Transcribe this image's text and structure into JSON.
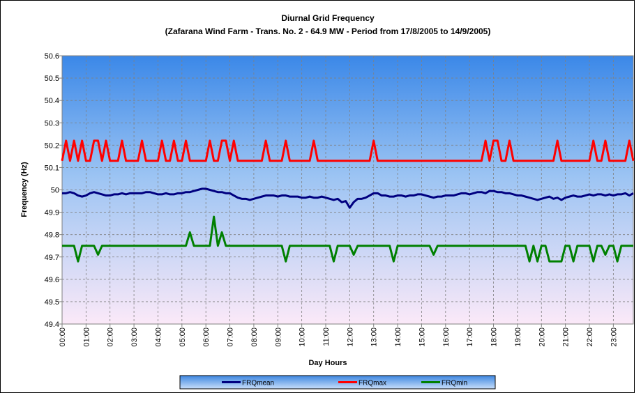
{
  "chart_data": {
    "type": "line",
    "title": "Diurnal Grid Frequency",
    "subtitle": "(Zafarana Wind Farm - Trans. No. 2 - 64.9 MW - Period from 17/8/2005 to 14/9/2005)",
    "x_label": "Day Hours",
    "y_label": "Frequency (Hz)",
    "x": [
      0,
      10,
      20,
      30,
      40,
      50,
      60,
      70,
      80,
      90,
      100,
      110,
      120,
      130,
      140,
      150,
      160,
      170,
      180,
      190,
      200,
      210,
      220,
      230,
      240,
      250,
      260,
      270,
      280,
      290,
      300,
      310,
      320,
      330,
      340,
      350,
      360,
      370,
      380,
      390,
      400,
      410,
      420,
      430,
      440,
      450,
      460,
      470,
      480,
      490,
      500,
      510,
      520,
      530,
      540,
      550,
      560,
      570,
      580,
      590,
      600,
      610,
      620,
      630,
      640,
      650,
      660,
      670,
      680,
      690,
      700,
      710,
      720,
      730,
      740,
      750,
      760,
      770,
      780,
      790,
      800,
      810,
      820,
      830,
      840,
      850,
      860,
      870,
      880,
      890,
      900,
      910,
      920,
      930,
      940,
      950,
      960,
      970,
      980,
      990,
      1000,
      1010,
      1020,
      1030,
      1040,
      1050,
      1060,
      1070,
      1080,
      1090,
      1100,
      1110,
      1120,
      1130,
      1140,
      1150,
      1160,
      1170,
      1180,
      1190,
      1200,
      1210,
      1220,
      1230,
      1240,
      1250,
      1260,
      1270,
      1280,
      1290,
      1300,
      1310,
      1320,
      1330,
      1340,
      1350,
      1360,
      1370,
      1380,
      1390,
      1400,
      1410,
      1420,
      1430
    ],
    "xlim": [
      0,
      1430
    ],
    "xticks": [
      {
        "value": 0,
        "label": "00:00"
      },
      {
        "value": 60,
        "label": "01:00"
      },
      {
        "value": 120,
        "label": "02:00"
      },
      {
        "value": 180,
        "label": "03:00"
      },
      {
        "value": 240,
        "label": "04:00"
      },
      {
        "value": 300,
        "label": "05:00"
      },
      {
        "value": 360,
        "label": "06:00"
      },
      {
        "value": 420,
        "label": "07:00"
      },
      {
        "value": 480,
        "label": "08:00"
      },
      {
        "value": 540,
        "label": "09:00"
      },
      {
        "value": 600,
        "label": "10:00"
      },
      {
        "value": 660,
        "label": "11:00"
      },
      {
        "value": 720,
        "label": "12:00"
      },
      {
        "value": 780,
        "label": "13:00"
      },
      {
        "value": 840,
        "label": "14:00"
      },
      {
        "value": 900,
        "label": "15:00"
      },
      {
        "value": 960,
        "label": "16:00"
      },
      {
        "value": 1020,
        "label": "17:00"
      },
      {
        "value": 1080,
        "label": "18:00"
      },
      {
        "value": 1140,
        "label": "19:00"
      },
      {
        "value": 1200,
        "label": "20:00"
      },
      {
        "value": 1260,
        "label": "21:00"
      },
      {
        "value": 1320,
        "label": "22:00"
      },
      {
        "value": 1380,
        "label": "23:00"
      }
    ],
    "ylim": [
      49.4,
      50.6
    ],
    "yticks": [
      49.4,
      49.5,
      49.6,
      49.7,
      49.8,
      49.9,
      50,
      50.1,
      50.2,
      50.3,
      50.4,
      50.5,
      50.6
    ],
    "grid": true,
    "legend": "bottom",
    "series": [
      {
        "name": "FRQmean",
        "color": "#000080",
        "values": [
          49.985,
          49.985,
          49.99,
          49.985,
          49.975,
          49.97,
          49.975,
          49.985,
          49.99,
          49.985,
          49.98,
          49.975,
          49.975,
          49.98,
          49.98,
          49.985,
          49.98,
          49.985,
          49.985,
          49.985,
          49.985,
          49.99,
          49.99,
          49.985,
          49.98,
          49.98,
          49.985,
          49.98,
          49.98,
          49.985,
          49.985,
          49.99,
          49.99,
          49.995,
          50.0,
          50.005,
          50.005,
          50.0,
          49.995,
          49.99,
          49.99,
          49.985,
          49.985,
          49.975,
          49.965,
          49.96,
          49.96,
          49.955,
          49.96,
          49.965,
          49.97,
          49.975,
          49.975,
          49.975,
          49.97,
          49.975,
          49.975,
          49.97,
          49.97,
          49.97,
          49.965,
          49.965,
          49.97,
          49.965,
          49.965,
          49.97,
          49.965,
          49.96,
          49.955,
          49.96,
          49.945,
          49.95,
          49.92,
          49.945,
          49.96,
          49.96,
          49.965,
          49.975,
          49.985,
          49.985,
          49.975,
          49.975,
          49.97,
          49.97,
          49.975,
          49.975,
          49.97,
          49.975,
          49.975,
          49.98,
          49.98,
          49.975,
          49.97,
          49.965,
          49.97,
          49.97,
          49.975,
          49.975,
          49.975,
          49.98,
          49.985,
          49.985,
          49.98,
          49.985,
          49.99,
          49.99,
          49.985,
          49.995,
          49.995,
          49.99,
          49.99,
          49.985,
          49.985,
          49.98,
          49.975,
          49.975,
          49.97,
          49.965,
          49.96,
          49.955,
          49.96,
          49.965,
          49.97,
          49.96,
          49.965,
          49.955,
          49.965,
          49.97,
          49.975,
          49.97,
          49.97,
          49.975,
          49.98,
          49.975,
          49.98,
          49.98,
          49.975,
          49.98,
          49.975,
          49.98,
          49.98,
          49.985,
          49.975,
          49.985
        ]
      },
      {
        "name": "FRQmax",
        "color": "#ff0000",
        "values": [
          50.13,
          50.22,
          50.13,
          50.22,
          50.13,
          50.22,
          50.13,
          50.13,
          50.22,
          50.22,
          50.13,
          50.22,
          50.13,
          50.13,
          50.13,
          50.22,
          50.13,
          50.13,
          50.13,
          50.13,
          50.22,
          50.13,
          50.13,
          50.13,
          50.13,
          50.22,
          50.13,
          50.13,
          50.22,
          50.13,
          50.13,
          50.22,
          50.13,
          50.13,
          50.13,
          50.13,
          50.13,
          50.22,
          50.13,
          50.13,
          50.22,
          50.22,
          50.13,
          50.22,
          50.13,
          50.13,
          50.13,
          50.13,
          50.13,
          50.13,
          50.13,
          50.22,
          50.13,
          50.13,
          50.13,
          50.13,
          50.22,
          50.13,
          50.13,
          50.13,
          50.13,
          50.13,
          50.13,
          50.22,
          50.13,
          50.13,
          50.13,
          50.13,
          50.13,
          50.13,
          50.13,
          50.13,
          50.13,
          50.13,
          50.13,
          50.13,
          50.13,
          50.13,
          50.22,
          50.13,
          50.13,
          50.13,
          50.13,
          50.13,
          50.13,
          50.13,
          50.13,
          50.13,
          50.13,
          50.13,
          50.13,
          50.13,
          50.13,
          50.13,
          50.13,
          50.13,
          50.13,
          50.13,
          50.13,
          50.13,
          50.13,
          50.13,
          50.13,
          50.13,
          50.13,
          50.13,
          50.22,
          50.13,
          50.22,
          50.22,
          50.13,
          50.13,
          50.22,
          50.13,
          50.13,
          50.13,
          50.13,
          50.13,
          50.13,
          50.13,
          50.13,
          50.13,
          50.13,
          50.13,
          50.22,
          50.13,
          50.13,
          50.13,
          50.13,
          50.13,
          50.13,
          50.13,
          50.13,
          50.22,
          50.13,
          50.13,
          50.22,
          50.13,
          50.13,
          50.13,
          50.13,
          50.13,
          50.22,
          50.13
        ]
      },
      {
        "name": "FRQmin",
        "color": "#008000",
        "values": [
          49.75,
          49.75,
          49.75,
          49.75,
          49.68,
          49.75,
          49.75,
          49.75,
          49.75,
          49.71,
          49.75,
          49.75,
          49.75,
          49.75,
          49.75,
          49.75,
          49.75,
          49.75,
          49.75,
          49.75,
          49.75,
          49.75,
          49.75,
          49.75,
          49.75,
          49.75,
          49.75,
          49.75,
          49.75,
          49.75,
          49.75,
          49.75,
          49.81,
          49.75,
          49.75,
          49.75,
          49.75,
          49.75,
          49.88,
          49.75,
          49.81,
          49.75,
          49.75,
          49.75,
          49.75,
          49.75,
          49.75,
          49.75,
          49.75,
          49.75,
          49.75,
          49.75,
          49.75,
          49.75,
          49.75,
          49.75,
          49.68,
          49.75,
          49.75,
          49.75,
          49.75,
          49.75,
          49.75,
          49.75,
          49.75,
          49.75,
          49.75,
          49.75,
          49.68,
          49.75,
          49.75,
          49.75,
          49.75,
          49.71,
          49.75,
          49.75,
          49.75,
          49.75,
          49.75,
          49.75,
          49.75,
          49.75,
          49.75,
          49.68,
          49.75,
          49.75,
          49.75,
          49.75,
          49.75,
          49.75,
          49.75,
          49.75,
          49.75,
          49.71,
          49.75,
          49.75,
          49.75,
          49.75,
          49.75,
          49.75,
          49.75,
          49.75,
          49.75,
          49.75,
          49.75,
          49.75,
          49.75,
          49.75,
          49.75,
          49.75,
          49.75,
          49.75,
          49.75,
          49.75,
          49.75,
          49.75,
          49.75,
          49.68,
          49.75,
          49.68,
          49.75,
          49.75,
          49.68,
          49.68,
          49.68,
          49.68,
          49.75,
          49.75,
          49.68,
          49.75,
          49.75,
          49.75,
          49.75,
          49.68,
          49.75,
          49.75,
          49.71,
          49.75,
          49.75,
          49.68,
          49.75,
          49.75,
          49.75,
          49.75
        ]
      }
    ]
  }
}
